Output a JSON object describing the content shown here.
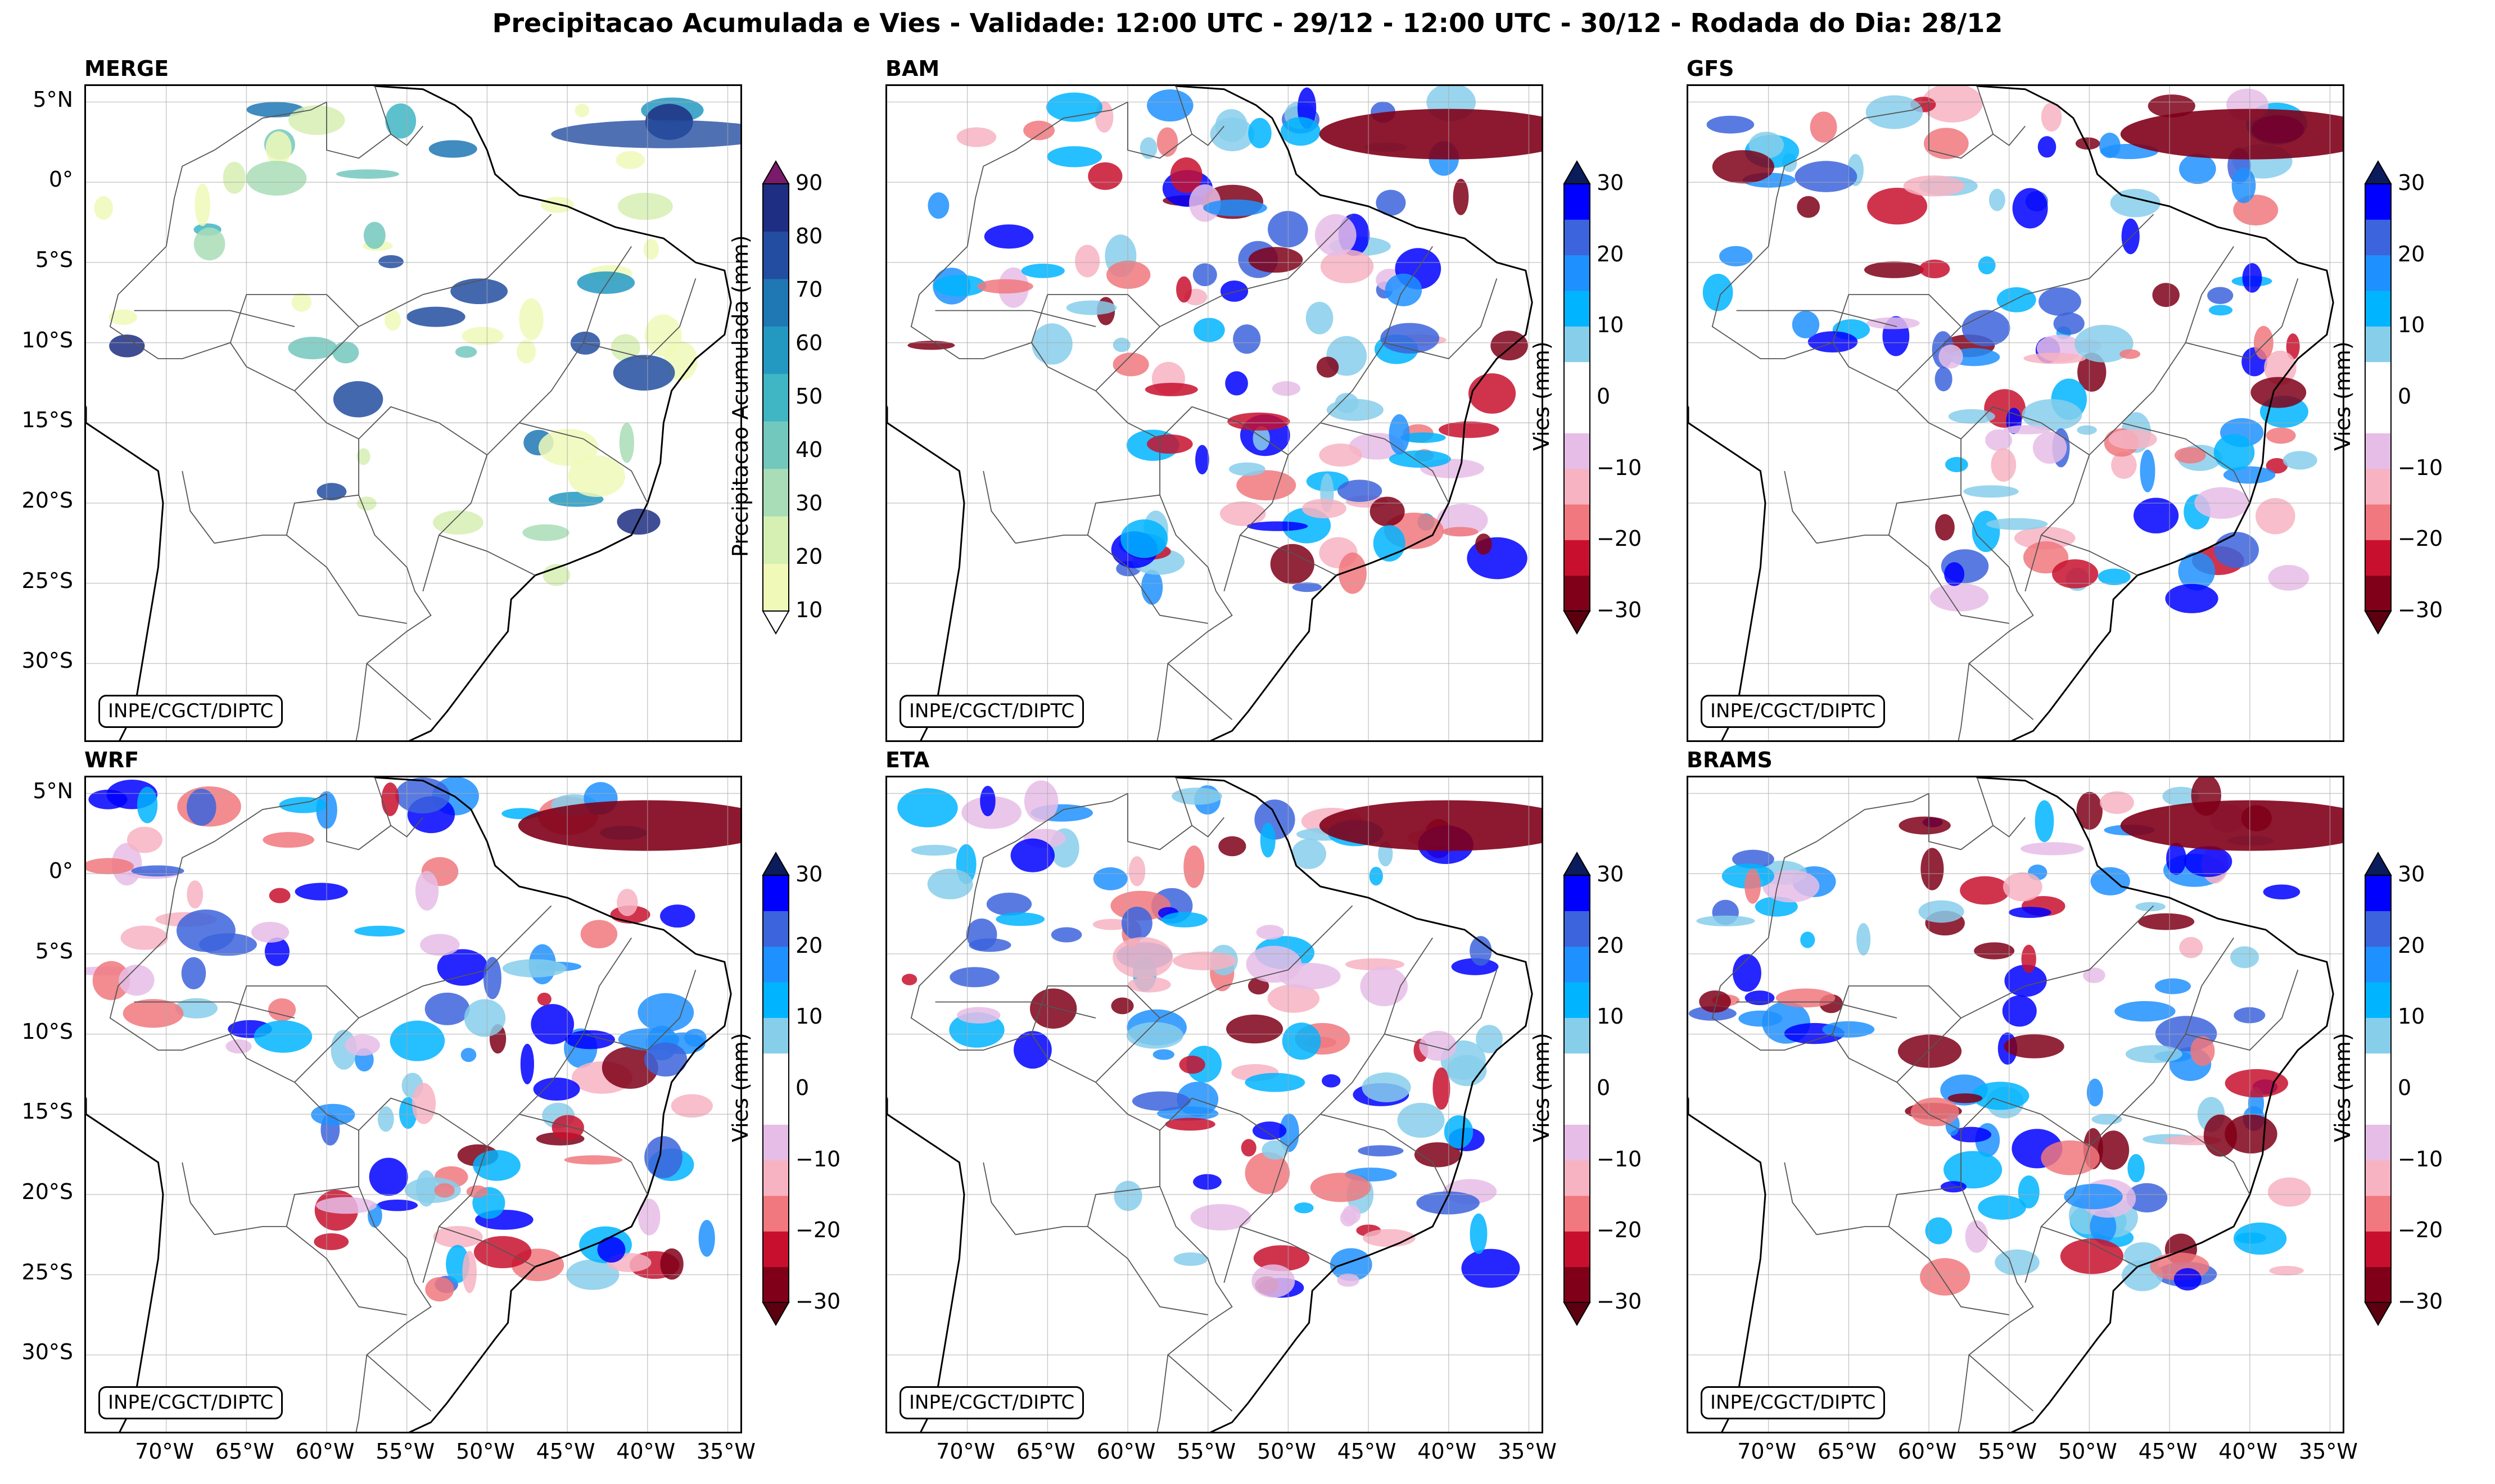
{
  "title": "Precipitacao Acumulada e Vies - Validade: 12:00 UTC - 29/12 - 12:00 UTC - 30/12 - Rodada do Dia: 28/12",
  "credit": "INPE/CGCT/DIPTC",
  "lat_labels": [
    "5°N",
    "0°",
    "5°S",
    "10°S",
    "15°S",
    "20°S",
    "25°S",
    "30°S"
  ],
  "lon_labels": [
    "70°W",
    "65°W",
    "60°W",
    "55°W",
    "50°W",
    "45°W",
    "40°W",
    "35°W"
  ],
  "panels": [
    {
      "name": "MERGE",
      "kind": "precip"
    },
    {
      "name": "BAM",
      "kind": "bias"
    },
    {
      "name": "GFS",
      "kind": "bias"
    },
    {
      "name": "WRF",
      "kind": "bias"
    },
    {
      "name": "ETA",
      "kind": "bias"
    },
    {
      "name": "BRAMS",
      "kind": "bias"
    }
  ],
  "colorbars": {
    "precip": {
      "label": "Precipitacao Acumulada (mm)",
      "ticks": [
        "90",
        "80",
        "70",
        "60",
        "50",
        "40",
        "30",
        "20",
        "10"
      ],
      "colors": [
        "#f0f9b8",
        "#d6efb3",
        "#a9ddb7",
        "#73c8bd",
        "#40b5c4",
        "#2399c2",
        "#1f77b4",
        "#234da0",
        "#1d2e83"
      ],
      "over": "#7a1a6a",
      "under": "#ffffff"
    },
    "bias": {
      "label": "Vies (mm)",
      "ticks": [
        "30",
        "20",
        "10",
        "0",
        "−10",
        "−20",
        "−30"
      ],
      "colors": [
        "#7f0018",
        "#c8102e",
        "#f0787e",
        "#f7b3c2",
        "#e6bde6",
        "#ffffff",
        "#ffffff",
        "#87ceeb",
        "#00b4ff",
        "#1e90ff",
        "#3c64dc",
        "#0000ff"
      ],
      "over": "#0a1c5c",
      "under": "#5c0010"
    }
  }
}
